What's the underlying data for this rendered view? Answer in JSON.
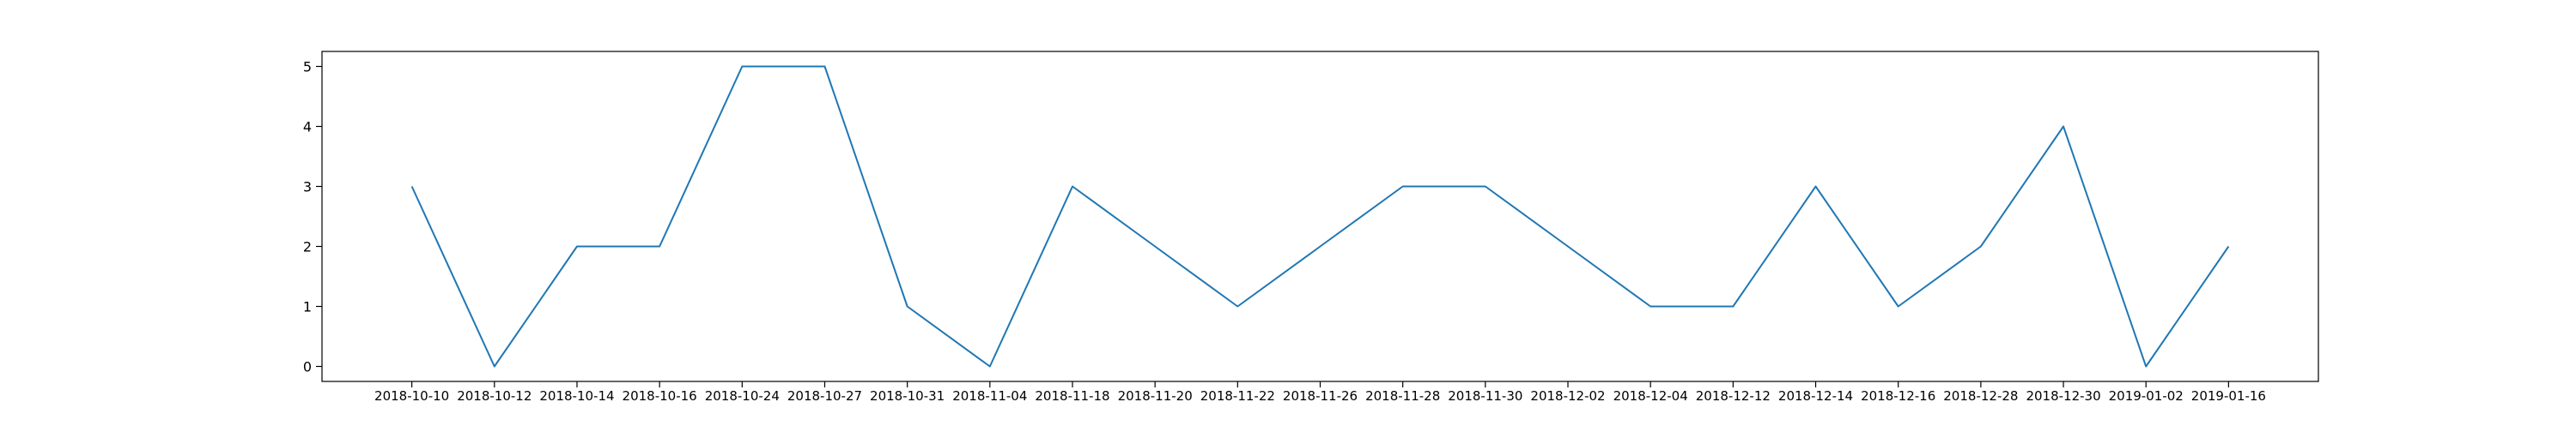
{
  "chart_data": {
    "type": "line",
    "title": "",
    "xlabel": "",
    "ylabel": "",
    "categories": [
      "2018-10-10",
      "2018-10-12",
      "2018-10-14",
      "2018-10-16",
      "2018-10-24",
      "2018-10-27",
      "2018-10-31",
      "2018-11-04",
      "2018-11-18",
      "2018-11-20",
      "2018-11-22",
      "2018-11-26",
      "2018-11-28",
      "2018-11-30",
      "2018-12-02",
      "2018-12-04",
      "2018-12-12",
      "2018-12-14",
      "2018-12-16",
      "2018-12-28",
      "2018-12-30",
      "2019-01-02",
      "2019-01-16"
    ],
    "series": [
      {
        "values": [
          3,
          0,
          2,
          2,
          5,
          5,
          1,
          0,
          3,
          2,
          1,
          2,
          3,
          3,
          2,
          1,
          1,
          3,
          1,
          2,
          4,
          0,
          2
        ],
        "color": "#1f77b4"
      }
    ],
    "ylim": [
      -0.25,
      5.25
    ],
    "yticks": [
      0,
      1,
      2,
      3,
      4,
      5
    ],
    "grid": false,
    "legend": "none"
  }
}
